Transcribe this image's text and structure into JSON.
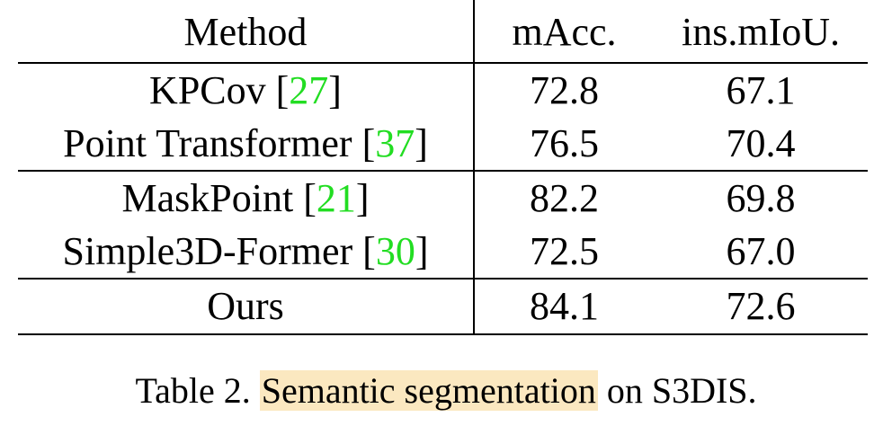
{
  "table": {
    "headers": [
      "Method",
      "mAcc.",
      "ins.mIoU."
    ],
    "rows": [
      {
        "method": "KPCov",
        "cite": "27",
        "macc": "72.8",
        "miou": "67.1",
        "bold": false
      },
      {
        "method": "Point Transformer",
        "cite": "37",
        "macc": "76.5",
        "miou": "70.4",
        "bold": false
      },
      {
        "method": "MaskPoint",
        "cite": "21",
        "macc": "82.2",
        "miou": "69.8",
        "bold": false
      },
      {
        "method": "Simple3D-Former",
        "cite": "30",
        "macc": "72.5",
        "miou": "67.0",
        "bold": false
      },
      {
        "method": "Ours",
        "cite": "",
        "macc": "84.1",
        "miou": "72.6",
        "bold": true
      }
    ]
  },
  "caption": {
    "prefix": "Table 2.",
    "highlighted": "Semantic segmentation",
    "suffix": "on S3DIS."
  },
  "colors": {
    "citation": "#22dd22",
    "highlight": "#fbe8c0",
    "text": "#000000"
  }
}
